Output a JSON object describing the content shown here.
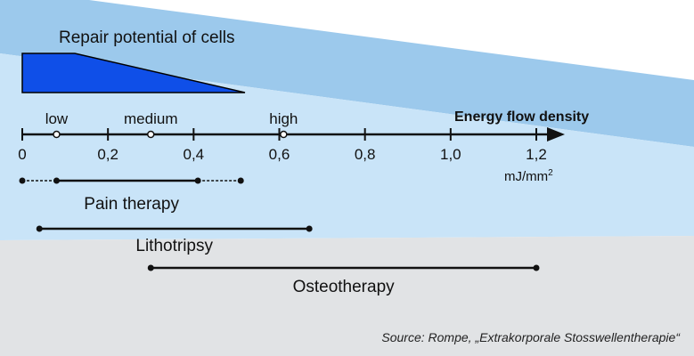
{
  "title": "Repair potential of cells",
  "axis": {
    "label": "Energy flow density",
    "unit_base": "mJ/mm",
    "unit_exp": "2",
    "min": 0,
    "max": 1.2,
    "ticks": [
      {
        "value": 0,
        "label": "0"
      },
      {
        "value": 0.2,
        "label": "0,2"
      },
      {
        "value": 0.4,
        "label": "0,4"
      },
      {
        "value": 0.6,
        "label": "0,6"
      },
      {
        "value": 0.8,
        "label": "0,8"
      },
      {
        "value": 1.0,
        "label": "1,0"
      },
      {
        "value": 1.2,
        "label": "1,2"
      }
    ],
    "markers": [
      {
        "name": "low",
        "label": "low",
        "value": 0.08
      },
      {
        "name": "medium",
        "label": "medium",
        "value": 0.3
      },
      {
        "name": "high",
        "label": "high",
        "value": 0.61
      }
    ]
  },
  "therapies": [
    {
      "name": "pain-therapy",
      "label": "Pain therapy",
      "start": 0.08,
      "end": 0.41,
      "ext_start": 0.0,
      "ext_end": 0.51
    },
    {
      "name": "lithotripsy",
      "label": "Lithotripsy",
      "start": 0.04,
      "end": 0.67
    },
    {
      "name": "osteotherapy",
      "label": "Osteotherapy",
      "start": 0.3,
      "end": 1.2
    }
  ],
  "source": "Source: Rompe, „Extrakorporale Stosswellentherapie“",
  "colors": {
    "wedge": "#0f4fe8",
    "band_dark": "#9cc9ec",
    "band_light": "#c9e4f8",
    "gray_band": "#e1e3e5",
    "ink": "#111111"
  }
}
